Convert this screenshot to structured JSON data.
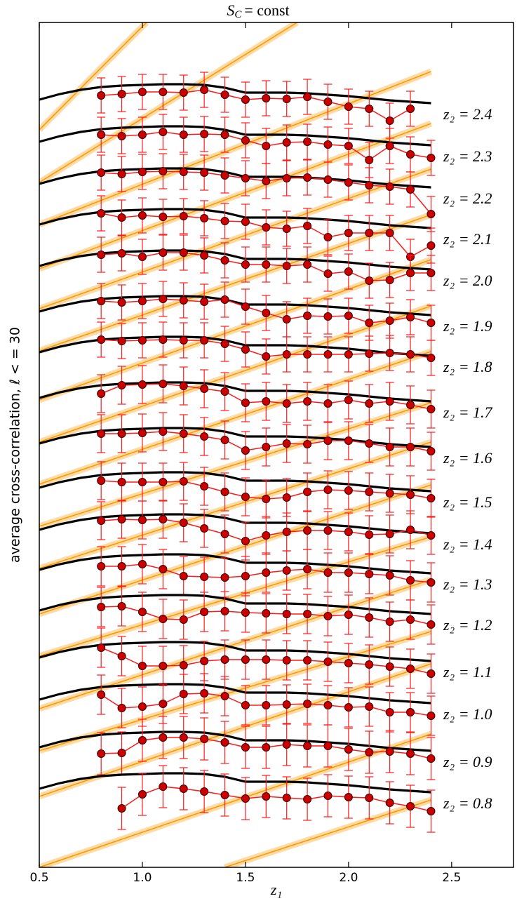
{
  "chart_data": {
    "type": "line",
    "title": [
      "S",
      "C",
      "= const"
    ],
    "xlabel": "z₁",
    "ylabel": "average cross-correlation, ℓ < = 30",
    "xlim": [
      0.5,
      2.8
    ],
    "ylim": [
      0,
      12.04
    ],
    "xticks": [
      0.5,
      {
        "value": 1,
        "label": "1.0"
      },
      1.5,
      {
        "value": 2,
        "label": "2.0"
      },
      2.5
    ],
    "model_color": "#000000",
    "data_color": "#ff1a1a",
    "marker_color": "#cc0000",
    "band_color": "#ff9900",
    "x_model": [
      0.5,
      0.6,
      0.7,
      0.8,
      0.9,
      1.0,
      1.1,
      1.2,
      1.3,
      1.4,
      1.5,
      1.6,
      1.7,
      1.8,
      1.9,
      2.0,
      2.1,
      2.2,
      2.3,
      2.4
    ],
    "x_data": [
      0.8,
      0.9,
      1.0,
      1.1,
      1.2,
      1.3,
      1.4,
      1.5,
      1.6,
      1.7,
      1.8,
      1.9,
      2.0,
      2.1,
      2.2,
      2.3,
      2.4
    ],
    "series": [
      {
        "name": "z₂ = 2.4",
        "yerr": 0.25,
        "model": [
          10.94,
          11.02,
          11.08,
          11.12,
          11.14,
          11.15,
          11.16,
          11.16,
          11.15,
          11.11,
          11.04,
          11.04,
          11.04,
          11.03,
          11.01,
          10.99,
          10.96,
          10.93,
          10.91,
          10.89
        ],
        "data": [
          11.0,
          11.02,
          11.05,
          11.05,
          11.04,
          11.08,
          11.01,
          10.94,
          10.96,
          10.95,
          10.98,
          10.91,
          10.84,
          10.81,
          10.64,
          10.81,
          null
        ]
      },
      {
        "name": "z₂ = 2.3",
        "yerr": 0.25,
        "model": [
          10.34,
          10.42,
          10.48,
          10.52,
          10.54,
          10.55,
          10.56,
          10.56,
          10.55,
          10.51,
          10.44,
          10.44,
          10.44,
          10.43,
          10.41,
          10.39,
          10.36,
          10.33,
          10.31,
          10.29
        ],
        "data": [
          10.44,
          10.42,
          10.44,
          10.48,
          10.44,
          10.45,
          10.44,
          10.36,
          10.28,
          10.33,
          10.34,
          10.3,
          10.28,
          10.08,
          10.28,
          10.16,
          10.11
        ]
      },
      {
        "name": "z₂ = 2.2",
        "yerr": 0.25,
        "model": [
          9.74,
          9.82,
          9.88,
          9.92,
          9.94,
          9.95,
          9.96,
          9.96,
          9.95,
          9.91,
          9.84,
          9.84,
          9.84,
          9.83,
          9.81,
          9.79,
          9.76,
          9.73,
          9.71,
          9.69
        ],
        "data": [
          9.9,
          9.88,
          9.91,
          9.92,
          9.91,
          9.9,
          9.86,
          9.82,
          9.78,
          9.82,
          9.83,
          9.8,
          9.76,
          9.72,
          9.7,
          9.66,
          9.31
        ]
      },
      {
        "name": "z₂ = 2.1",
        "yerr": 0.25,
        "model": [
          9.16,
          9.24,
          9.3,
          9.34,
          9.36,
          9.37,
          9.38,
          9.38,
          9.37,
          9.33,
          9.26,
          9.26,
          9.26,
          9.25,
          9.23,
          9.21,
          9.18,
          9.15,
          9.13,
          9.11
        ],
        "data": [
          9.32,
          9.26,
          9.29,
          9.27,
          9.28,
          9.25,
          9.21,
          9.2,
          9.12,
          9.1,
          9.14,
          8.98,
          9.04,
          9.04,
          9.04,
          8.7,
          8.86
        ]
      },
      {
        "name": "z₂ = 2.0",
        "yerr": 0.25,
        "model": [
          8.57,
          8.65,
          8.71,
          8.75,
          8.77,
          8.78,
          8.79,
          8.79,
          8.78,
          8.74,
          8.67,
          8.67,
          8.67,
          8.66,
          8.64,
          8.62,
          8.59,
          8.56,
          8.54,
          8.52
        ],
        "data": [
          8.73,
          8.75,
          8.7,
          8.76,
          8.76,
          8.72,
          8.65,
          8.59,
          8.59,
          8.57,
          8.59,
          8.46,
          8.49,
          8.36,
          8.37,
          8.47,
          8.47
        ]
      },
      {
        "name": "z₂ = 1.9",
        "yerr": 0.25,
        "model": [
          7.92,
          8.0,
          8.06,
          8.1,
          8.12,
          8.13,
          8.14,
          8.14,
          8.13,
          8.09,
          8.02,
          8.02,
          8.02,
          8.01,
          7.99,
          7.97,
          7.94,
          7.91,
          7.89,
          7.87
        ],
        "data": [
          8.07,
          8.05,
          8.07,
          8.1,
          8.08,
          8.06,
          8.09,
          7.99,
          7.9,
          7.81,
          7.86,
          7.85,
          7.86,
          7.76,
          7.79,
          7.84,
          7.76
        ]
      },
      {
        "name": "z₂ = 1.8",
        "yerr": 0.25,
        "model": [
          7.34,
          7.42,
          7.48,
          7.52,
          7.54,
          7.55,
          7.56,
          7.56,
          7.55,
          7.51,
          7.44,
          7.44,
          7.44,
          7.43,
          7.41,
          7.39,
          7.36,
          7.33,
          7.31,
          7.29
        ],
        "data": [
          7.52,
          7.5,
          7.51,
          7.52,
          7.51,
          7.51,
          7.46,
          7.38,
          7.28,
          7.31,
          7.31,
          7.31,
          7.31,
          7.32,
          7.33,
          7.31,
          7.26
        ]
      },
      {
        "name": "z₂ = 1.7",
        "yerr": 0.27,
        "model": [
          6.69,
          6.77,
          6.83,
          6.87,
          6.89,
          6.9,
          6.91,
          6.91,
          6.9,
          6.86,
          6.79,
          6.79,
          6.79,
          6.78,
          6.76,
          6.74,
          6.71,
          6.68,
          6.66,
          6.64
        ],
        "data": [
          6.75,
          6.87,
          6.88,
          6.89,
          6.86,
          6.82,
          6.78,
          6.62,
          6.64,
          6.61,
          6.64,
          6.61,
          6.66,
          6.61,
          6.64,
          6.59,
          6.53
        ]
      },
      {
        "name": "z₂ = 1.6",
        "yerr": 0.27,
        "model": [
          6.04,
          6.12,
          6.18,
          6.22,
          6.24,
          6.25,
          6.26,
          6.26,
          6.25,
          6.21,
          6.14,
          6.14,
          6.14,
          6.13,
          6.11,
          6.09,
          6.06,
          6.03,
          6.01,
          5.99
        ],
        "data": [
          6.18,
          6.18,
          6.19,
          6.21,
          6.18,
          6.14,
          6.09,
          5.94,
          5.99,
          6.04,
          6.03,
          6.08,
          6.08,
          6.04,
          5.99,
          5.99,
          5.93
        ]
      },
      {
        "name": "z₂ = 1.5",
        "yerr": 0.27,
        "model": [
          5.41,
          5.49,
          5.55,
          5.59,
          5.61,
          5.62,
          5.63,
          5.63,
          5.62,
          5.58,
          5.51,
          5.51,
          5.51,
          5.5,
          5.48,
          5.46,
          5.43,
          5.4,
          5.38,
          5.36
        ],
        "data": [
          5.51,
          5.49,
          5.49,
          5.49,
          5.5,
          5.43,
          5.35,
          5.28,
          5.25,
          5.27,
          5.35,
          5.38,
          5.37,
          5.35,
          5.33,
          5.31,
          5.26
        ]
      },
      {
        "name": "z₂ = 1.4",
        "yerr": 0.27,
        "model": [
          4.81,
          4.89,
          4.95,
          4.99,
          5.01,
          5.02,
          5.03,
          5.03,
          5.02,
          4.98,
          4.91,
          4.91,
          4.91,
          4.9,
          4.88,
          4.86,
          4.83,
          4.8,
          4.78,
          4.76
        ],
        "data": [
          4.94,
          4.96,
          4.95,
          4.96,
          4.91,
          4.83,
          4.75,
          4.65,
          4.73,
          4.78,
          4.8,
          4.8,
          4.78,
          4.74,
          4.75,
          4.81,
          4.73
        ]
      },
      {
        "name": "z₂ = 1.3",
        "yerr": 0.28,
        "model": [
          4.24,
          4.32,
          4.38,
          4.42,
          4.44,
          4.45,
          4.46,
          4.46,
          4.45,
          4.41,
          4.34,
          4.34,
          4.34,
          4.33,
          4.31,
          4.29,
          4.26,
          4.23,
          4.21,
          4.19
        ],
        "data": [
          4.29,
          4.29,
          4.32,
          4.25,
          4.15,
          4.14,
          4.13,
          4.15,
          4.2,
          4.23,
          4.25,
          4.2,
          4.2,
          4.18,
          4.16,
          4.09,
          4.06
        ]
      },
      {
        "name": "z₂ = 1.2",
        "yerr": 0.28,
        "model": [
          3.66,
          3.74,
          3.8,
          3.84,
          3.86,
          3.87,
          3.88,
          3.88,
          3.87,
          3.83,
          3.76,
          3.76,
          3.76,
          3.75,
          3.73,
          3.71,
          3.68,
          3.65,
          3.63,
          3.61
        ],
        "data": [
          3.71,
          3.72,
          3.64,
          3.54,
          3.53,
          3.64,
          3.65,
          3.63,
          3.62,
          3.61,
          3.61,
          3.58,
          3.6,
          3.56,
          3.5,
          3.53,
          3.46
        ]
      },
      {
        "name": "z₂ = 1.1",
        "yerr": 0.28,
        "model": [
          2.99,
          3.07,
          3.13,
          3.17,
          3.19,
          3.2,
          3.21,
          3.21,
          3.2,
          3.16,
          3.09,
          3.09,
          3.09,
          3.08,
          3.06,
          3.04,
          3.01,
          2.98,
          2.96,
          2.94
        ],
        "data": [
          3.13,
          3.01,
          2.87,
          2.87,
          2.88,
          2.94,
          2.96,
          2.96,
          2.96,
          2.95,
          2.95,
          2.93,
          2.91,
          2.89,
          2.86,
          2.83,
          2.76
        ]
      },
      {
        "name": "z₂ = 1.0",
        "yerr": 0.28,
        "model": [
          2.39,
          2.47,
          2.53,
          2.57,
          2.59,
          2.6,
          2.61,
          2.61,
          2.6,
          2.56,
          2.49,
          2.49,
          2.49,
          2.48,
          2.46,
          2.44,
          2.41,
          2.38,
          2.36,
          2.34
        ],
        "data": [
          2.46,
          2.27,
          2.29,
          2.33,
          2.47,
          2.48,
          2.44,
          2.31,
          2.31,
          2.32,
          2.33,
          2.31,
          2.28,
          2.29,
          2.21,
          2.21,
          2.16
        ]
      },
      {
        "name": "z₂ = 0.9",
        "yerr": 0.3,
        "model": [
          1.71,
          1.79,
          1.85,
          1.89,
          1.91,
          1.92,
          1.93,
          1.93,
          1.92,
          1.88,
          1.81,
          1.81,
          1.81,
          1.8,
          1.78,
          1.76,
          1.73,
          1.7,
          1.68,
          1.66
        ],
        "data": [
          1.62,
          1.63,
          1.81,
          1.85,
          1.85,
          1.83,
          1.78,
          1.71,
          1.71,
          1.75,
          1.73,
          1.73,
          1.68,
          1.64,
          1.65,
          1.62,
          1.55
        ]
      },
      {
        "name": "z₂ = 0.8",
        "yerr": 0.3,
        "model": [
          1.12,
          1.2,
          1.26,
          1.3,
          1.32,
          1.33,
          1.34,
          1.34,
          1.33,
          1.29,
          1.22,
          1.22,
          1.22,
          1.21,
          1.19,
          1.17,
          1.14,
          1.11,
          1.09,
          1.07
        ],
        "data": [
          null,
          0.84,
          1.04,
          1.15,
          1.12,
          1.08,
          1.03,
          0.98,
          1.01,
          0.99,
          0.97,
          1.02,
          1.0,
          0.99,
          0.92,
          0.87,
          0.8
        ]
      }
    ],
    "bands": [
      {
        "x": [
          0.5,
          1.02
        ],
        "values": [
          10.51,
          12.04
        ]
      },
      {
        "x": [
          0.5,
          1.75
        ],
        "values": [
          9.76,
          12.04
        ]
      },
      {
        "x": [
          0.5,
          2.4
        ],
        "values": [
          9.16,
          11.34
        ]
      },
      {
        "x": [
          0.5,
          2.4
        ],
        "values": [
          8.53,
          10.6
        ]
      },
      {
        "x": [
          0.5,
          2.4
        ],
        "values": [
          7.96,
          9.95
        ]
      },
      {
        "x": [
          0.5,
          2.4
        ],
        "values": [
          7.36,
          9.3
        ]
      },
      {
        "x": [
          0.5,
          2.4
        ],
        "values": [
          6.66,
          8.66
        ]
      },
      {
        "x": [
          0.5,
          2.4
        ],
        "values": [
          6.06,
          8.0
        ]
      },
      {
        "x": [
          0.5,
          2.4
        ],
        "values": [
          5.46,
          7.35
        ]
      },
      {
        "x": [
          0.5,
          2.4
        ],
        "values": [
          4.86,
          6.62
        ]
      },
      {
        "x": [
          0.5,
          2.4
        ],
        "values": [
          4.26,
          6.06
        ]
      },
      {
        "x": [
          0.5,
          2.4
        ],
        "values": [
          3.61,
          5.45
        ]
      },
      {
        "x": [
          0.5,
          2.4
        ],
        "values": [
          3.01,
          4.71
        ]
      },
      {
        "x": [
          0.5,
          2.4
        ],
        "values": [
          2.26,
          4.1
        ]
      },
      {
        "x": [
          0.5,
          2.4
        ],
        "values": [
          1.66,
          3.36
        ]
      },
      {
        "x": [
          0.5,
          2.4
        ],
        "values": [
          1.01,
          2.9
        ]
      },
      {
        "x": [
          0.5,
          2.4
        ],
        "values": [
          0.0,
          1.9
        ]
      },
      {
        "x": [
          1.4,
          2.4
        ],
        "values": [
          0.0,
          0.96
        ]
      }
    ]
  }
}
